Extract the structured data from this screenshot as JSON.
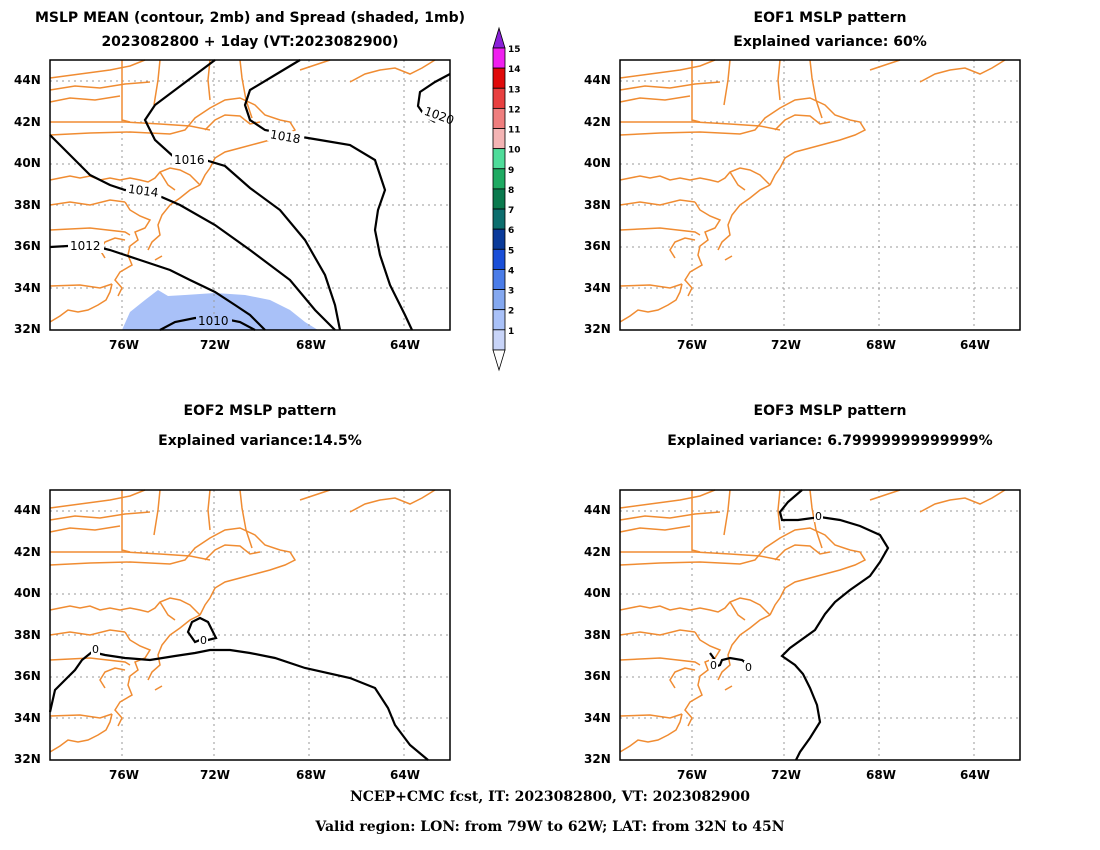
{
  "panels": [
    {
      "id": "mean",
      "title1": "MSLP MEAN (contour, 2mb) and Spread (shaded, 1mb)",
      "title2": "2023082800 + 1day (VT:2023082900)",
      "contour_labels": [
        "1010",
        "1012",
        "1014",
        "1016",
        "1018",
        "1020"
      ]
    },
    {
      "id": "eof1",
      "title1": "EOF1 MSLP pattern",
      "title2": "Explained variance: 60%",
      "contour_labels": []
    },
    {
      "id": "eof2",
      "title1": "EOF2 MSLP pattern",
      "title2": "Explained variance:14.5%",
      "contour_labels": [
        "0"
      ]
    },
    {
      "id": "eof3",
      "title1": "EOF3 MSLP pattern",
      "title2": "Explained variance: 6.79999999999999%",
      "contour_labels": [
        "0"
      ]
    }
  ],
  "lat_ticks": [
    "44N",
    "42N",
    "40N",
    "38N",
    "36N",
    "34N",
    "32N"
  ],
  "lon_ticks": [
    "76W",
    "72W",
    "68W",
    "64W"
  ],
  "colorbar": {
    "labels": [
      "1",
      "2",
      "3",
      "4",
      "5",
      "6",
      "7",
      "8",
      "9",
      "10",
      "11",
      "12",
      "13",
      "14",
      "15"
    ],
    "colors": [
      "#c8d4f8",
      "#a9c1f8",
      "#84a8f0",
      "#4a7ce8",
      "#1a4fd8",
      "#0a3a9a",
      "#0d6e6e",
      "#0b7a4e",
      "#1faa62",
      "#4fdc9a",
      "#f4b4b4",
      "#ef7e7e",
      "#e84040",
      "#e00a0a",
      "#f020f0",
      "#8a20d8"
    ]
  },
  "colors": {
    "coast": "#f08c32",
    "contour": "#000000",
    "grid": "#9a9a9a",
    "spread": "#a9c1f8"
  },
  "footer": {
    "line1": "NCEP+CMC fcst, IT: 2023082800, VT: 2023082900",
    "line2": "Valid region: LON: from 79W to 62W; LAT: from 32N to 45N"
  }
}
